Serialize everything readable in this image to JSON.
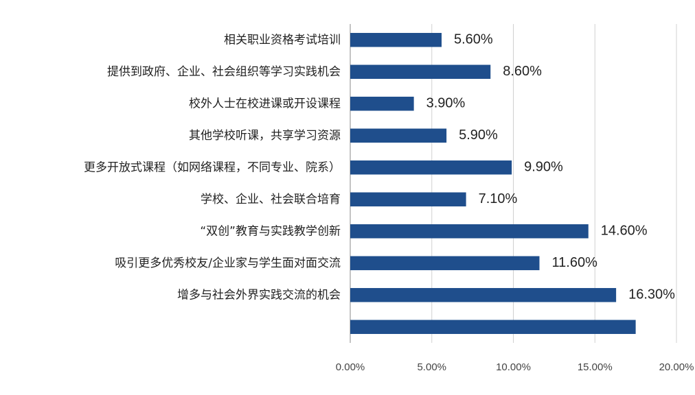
{
  "chart_data": {
    "type": "hbar",
    "categories": [
      "相关职业资格考试培训",
      "提供到政府、企业、社会组织等学习实践机会",
      "校外人士在校进课或开设课程",
      "其他学校听课，共享学习资源",
      "更多开放式课程（如网络课程，不同专业、院系）",
      "学校、企业、社会联合培育",
      "“双创”教育与实践教学创新",
      "吸引更多优秀校友/企业家与学生面对面交流",
      "增多与社会外界实践交流的机会",
      null
    ],
    "values": [
      5.6,
      8.6,
      3.9,
      5.9,
      9.9,
      7.1,
      14.6,
      11.6,
      16.3,
      17.5
    ],
    "value_labels": [
      "5.60%",
      "8.60%",
      "3.90%",
      "5.90%",
      "9.90%",
      "7.10%",
      "14.60%",
      "11.60%",
      "16.30%",
      null
    ],
    "color": "#1f4e8c",
    "xlim": [
      0,
      20
    ],
    "xticks": [
      {
        "value": 0,
        "label": "0.00%"
      },
      {
        "value": 5,
        "label": "5.00%"
      },
      {
        "value": 10,
        "label": "10.00%"
      },
      {
        "value": 15,
        "label": "15.00%"
      },
      {
        "value": 20,
        "label": "20.00%"
      }
    ],
    "grid": true
  }
}
